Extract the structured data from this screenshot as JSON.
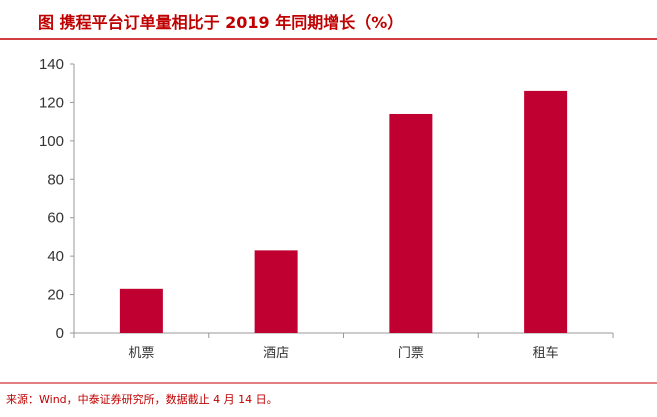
{
  "chart_data": {
    "type": "bar",
    "title": "图  携程平台订单量相比于 2019 年同期增长（%）",
    "categories": [
      "机票",
      "酒店",
      "门票",
      "租车"
    ],
    "values": [
      23,
      43,
      114,
      126
    ],
    "ylim": [
      0,
      140
    ],
    "yticks": [
      0,
      20,
      40,
      60,
      80,
      100,
      120,
      140
    ],
    "xlabel": "",
    "ylabel": "",
    "grid": false,
    "legend": "none",
    "bar_color": "#c00030",
    "accent_color": "#c00000"
  },
  "source": "来源：Wind，中泰证券研究所，数据截止 4 月 14 日。"
}
